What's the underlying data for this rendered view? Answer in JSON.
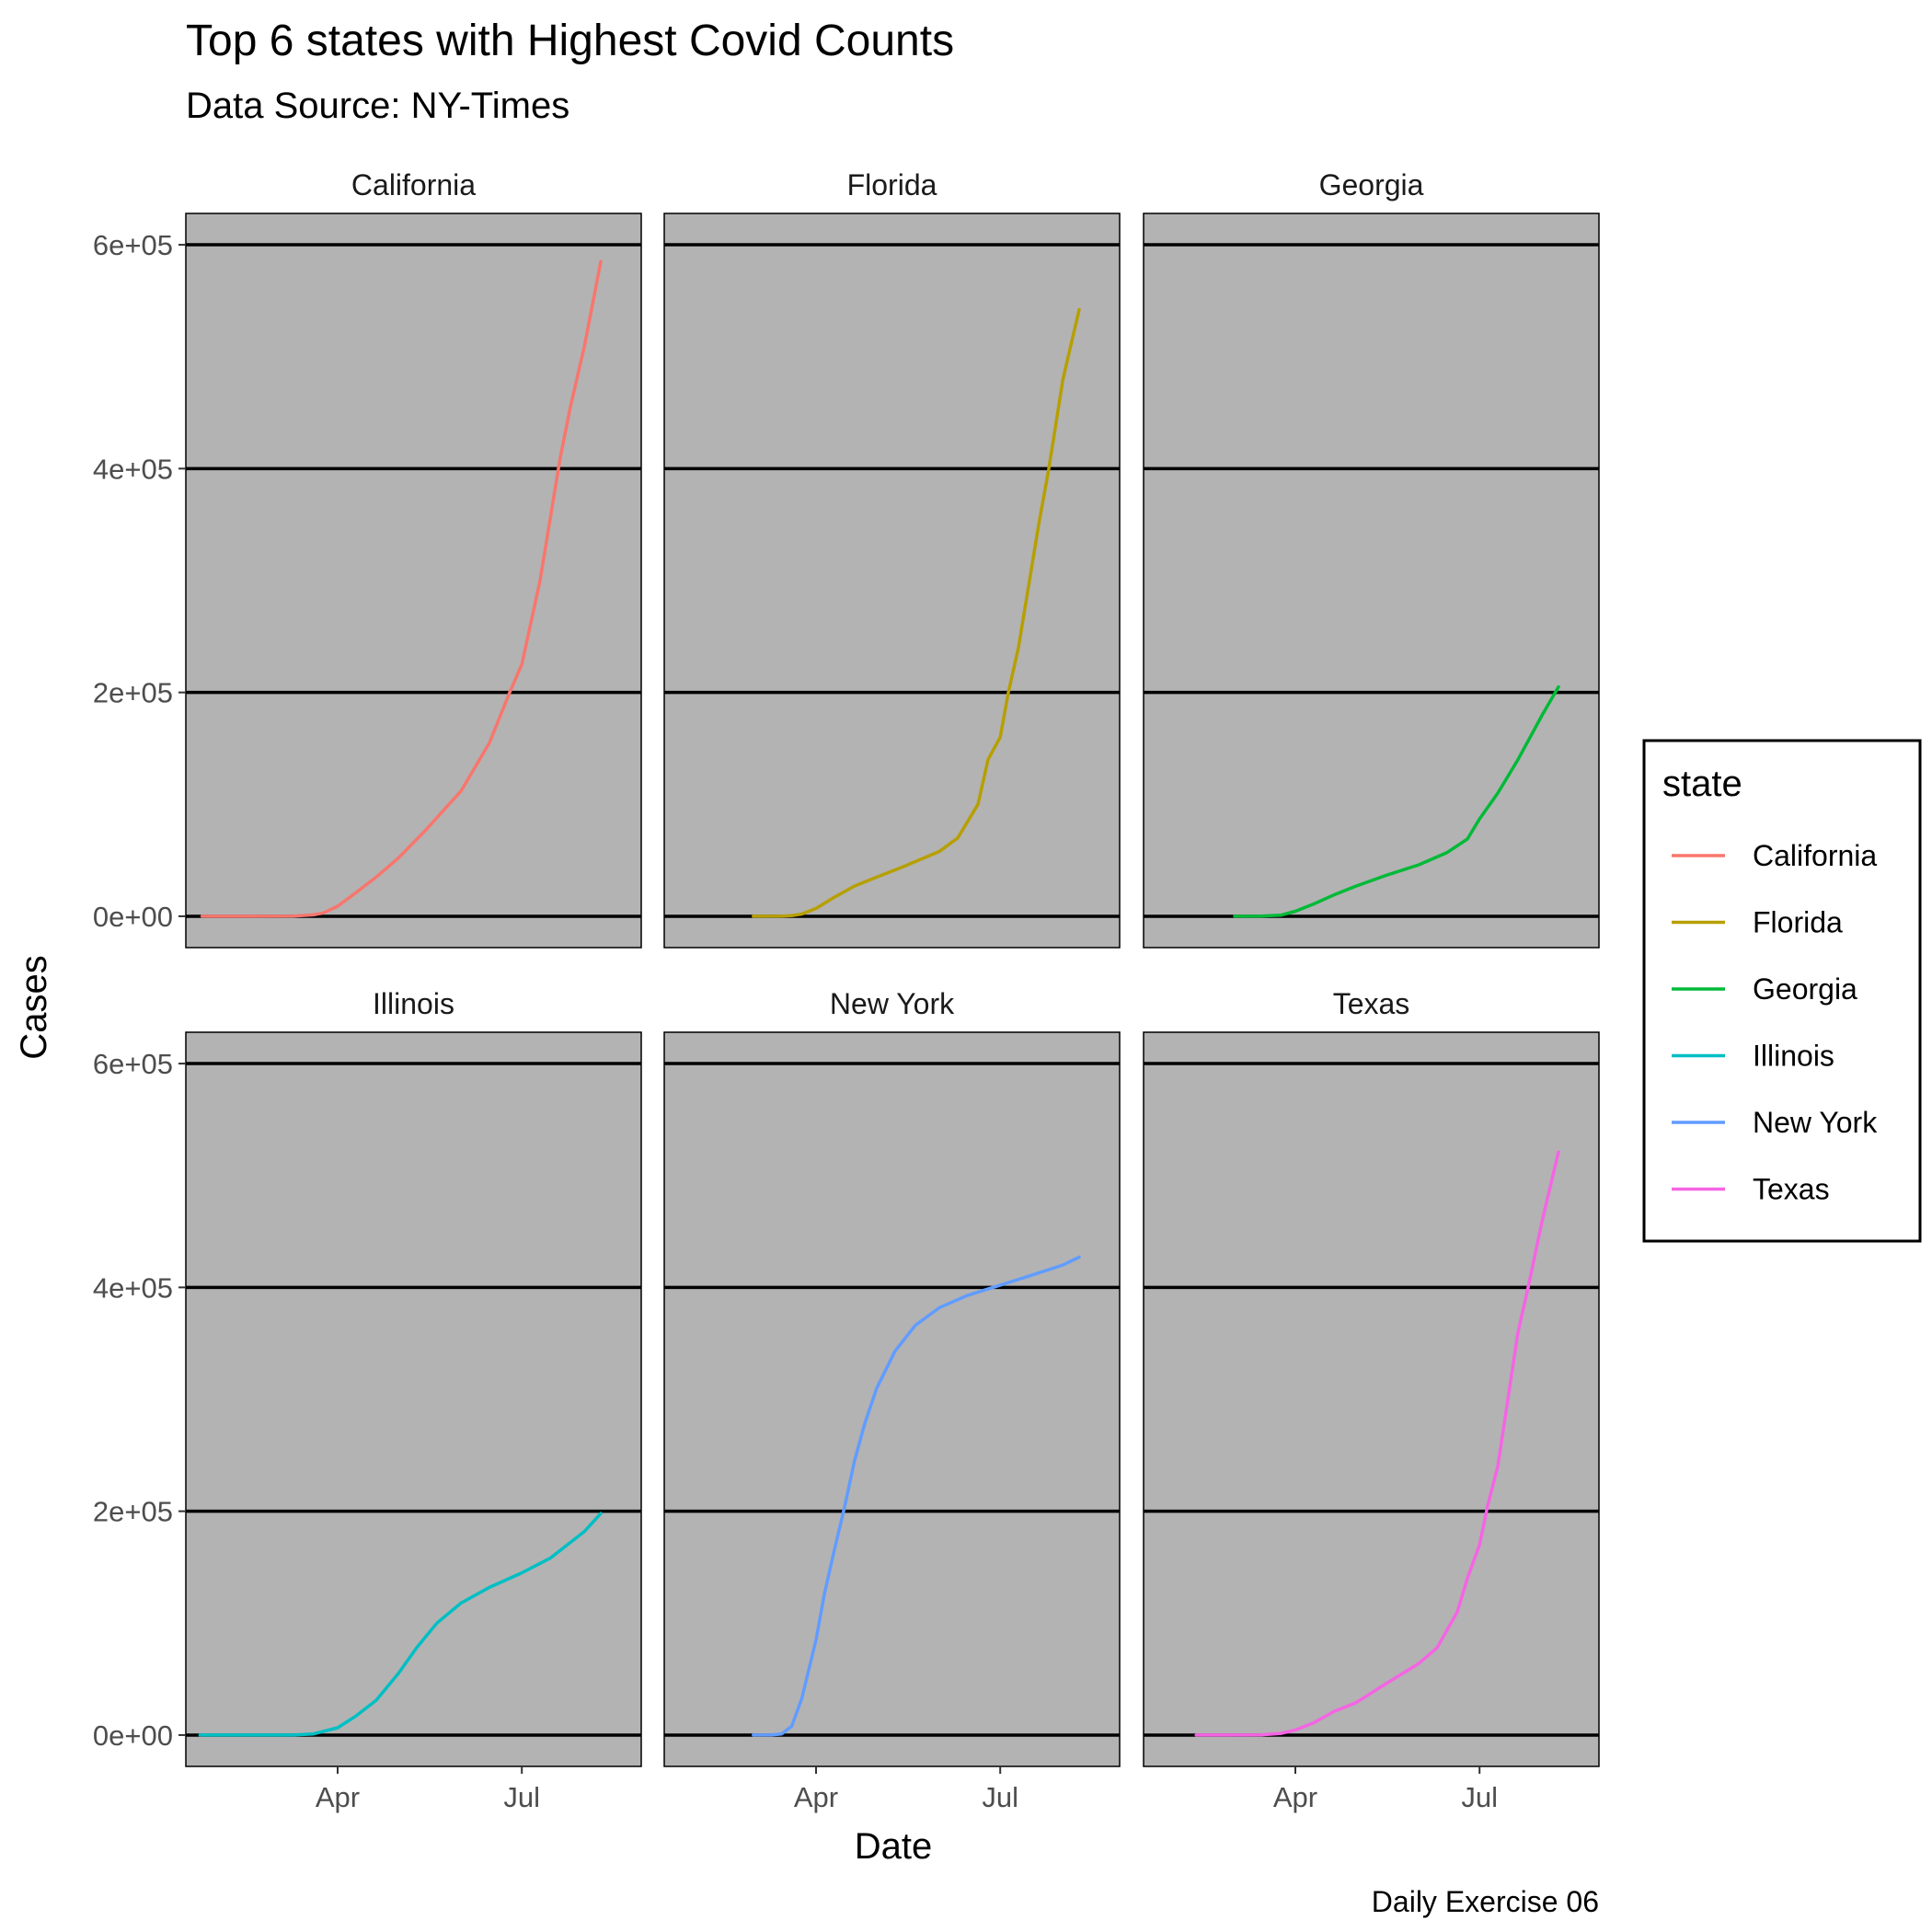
{
  "chart_data": {
    "type": "line",
    "title": "Top 6 states with Highest Covid Counts",
    "subtitle": "Data Source: NY-Times",
    "xlabel": "Date",
    "ylabel": "Cases",
    "caption": "Daily Exercise 06",
    "legend_title": "state",
    "legend_position": "right",
    "x_ticks": [
      {
        "date": "2020-04-01",
        "label": "Apr"
      },
      {
        "date": "2020-07-01",
        "label": "Jul"
      }
    ],
    "y_ticks": [
      {
        "value": 0,
        "label": "0e+00"
      },
      {
        "value": 200000,
        "label": "2e+05"
      },
      {
        "value": 400000,
        "label": "4e+05"
      },
      {
        "value": 600000,
        "label": "6e+05"
      }
    ],
    "ylim": [
      -28000,
      628000
    ],
    "xlim": [
      "2020-01-17",
      "2020-08-29"
    ],
    "panel_background": "#b3b3b3",
    "grid": "horizontal-major",
    "series": [
      {
        "name": "California",
        "color": "#f8766d",
        "x": [
          "2020-01-25",
          "2020-02-15",
          "2020-03-10",
          "2020-03-20",
          "2020-03-25",
          "2020-04-01",
          "2020-04-10",
          "2020-04-20",
          "2020-05-01",
          "2020-05-15",
          "2020-06-01",
          "2020-06-15",
          "2020-06-25",
          "2020-07-01",
          "2020-07-10",
          "2020-07-20",
          "2020-07-25",
          "2020-08-01",
          "2020-08-09"
        ],
        "y": [
          0,
          0,
          100,
          1300,
          3000,
          9000,
          21000,
          35000,
          52000,
          78000,
          112000,
          155000,
          200000,
          225000,
          300000,
          410000,
          455000,
          510000,
          585000
        ]
      },
      {
        "name": "Florida",
        "color": "#b79f00",
        "x": [
          "2020-03-01",
          "2020-03-15",
          "2020-03-20",
          "2020-03-25",
          "2020-04-01",
          "2020-04-10",
          "2020-04-20",
          "2020-05-01",
          "2020-05-15",
          "2020-06-01",
          "2020-06-10",
          "2020-06-20",
          "2020-06-25",
          "2020-07-01",
          "2020-07-05",
          "2020-07-10",
          "2020-07-20",
          "2020-07-25",
          "2020-08-01",
          "2020-08-09"
        ],
        "y": [
          0,
          100,
          500,
          2000,
          7000,
          17000,
          27000,
          35000,
          45000,
          58000,
          70000,
          100000,
          140000,
          160000,
          200000,
          240000,
          350000,
          400000,
          480000,
          542000
        ]
      },
      {
        "name": "Georgia",
        "color": "#00ba38",
        "x": [
          "2020-03-02",
          "2020-03-15",
          "2020-03-25",
          "2020-04-01",
          "2020-04-10",
          "2020-04-20",
          "2020-05-01",
          "2020-05-15",
          "2020-06-01",
          "2020-06-15",
          "2020-06-25",
          "2020-07-01",
          "2020-07-10",
          "2020-07-20",
          "2020-08-01",
          "2020-08-09"
        ],
        "y": [
          0,
          100,
          1000,
          4500,
          11000,
          19000,
          27000,
          36000,
          46000,
          57000,
          69000,
          87000,
          110000,
          140000,
          180000,
          205000
        ]
      },
      {
        "name": "Illinois",
        "color": "#00bfc4",
        "x": [
          "2020-01-24",
          "2020-02-15",
          "2020-03-10",
          "2020-03-20",
          "2020-04-01",
          "2020-04-10",
          "2020-04-20",
          "2020-05-01",
          "2020-05-10",
          "2020-05-20",
          "2020-06-01",
          "2020-06-15",
          "2020-07-01",
          "2020-07-15",
          "2020-08-01",
          "2020-08-09"
        ],
        "y": [
          0,
          0,
          0,
          1000,
          6500,
          17000,
          31000,
          55000,
          78000,
          100000,
          118000,
          132000,
          145000,
          158000,
          182000,
          198000
        ]
      },
      {
        "name": "New York",
        "color": "#619cff",
        "x": [
          "2020-03-01",
          "2020-03-10",
          "2020-03-15",
          "2020-03-20",
          "2020-03-25",
          "2020-04-01",
          "2020-04-05",
          "2020-04-10",
          "2020-04-15",
          "2020-04-20",
          "2020-04-25",
          "2020-05-01",
          "2020-05-10",
          "2020-05-20",
          "2020-06-01",
          "2020-06-15",
          "2020-07-01",
          "2020-07-15",
          "2020-08-01",
          "2020-08-09"
        ],
        "y": [
          0,
          200,
          1000,
          8000,
          33000,
          85000,
          125000,
          165000,
          203000,
          245000,
          278000,
          310000,
          343000,
          366000,
          382000,
          393000,
          402000,
          410000,
          420000,
          427000
        ]
      },
      {
        "name": "Texas",
        "color": "#f564e3",
        "x": [
          "2020-02-12",
          "2020-03-01",
          "2020-03-15",
          "2020-03-25",
          "2020-04-01",
          "2020-04-10",
          "2020-04-20",
          "2020-05-01",
          "2020-05-15",
          "2020-06-01",
          "2020-06-10",
          "2020-06-20",
          "2020-06-25",
          "2020-07-01",
          "2020-07-05",
          "2020-07-10",
          "2020-07-15",
          "2020-07-20",
          "2020-07-25",
          "2020-08-01",
          "2020-08-09"
        ],
        "y": [
          0,
          0,
          100,
          1500,
          4500,
          11000,
          21000,
          29000,
          45000,
          64000,
          78000,
          110000,
          140000,
          170000,
          205000,
          240000,
          300000,
          360000,
          400000,
          460000,
          521000
        ]
      }
    ]
  }
}
